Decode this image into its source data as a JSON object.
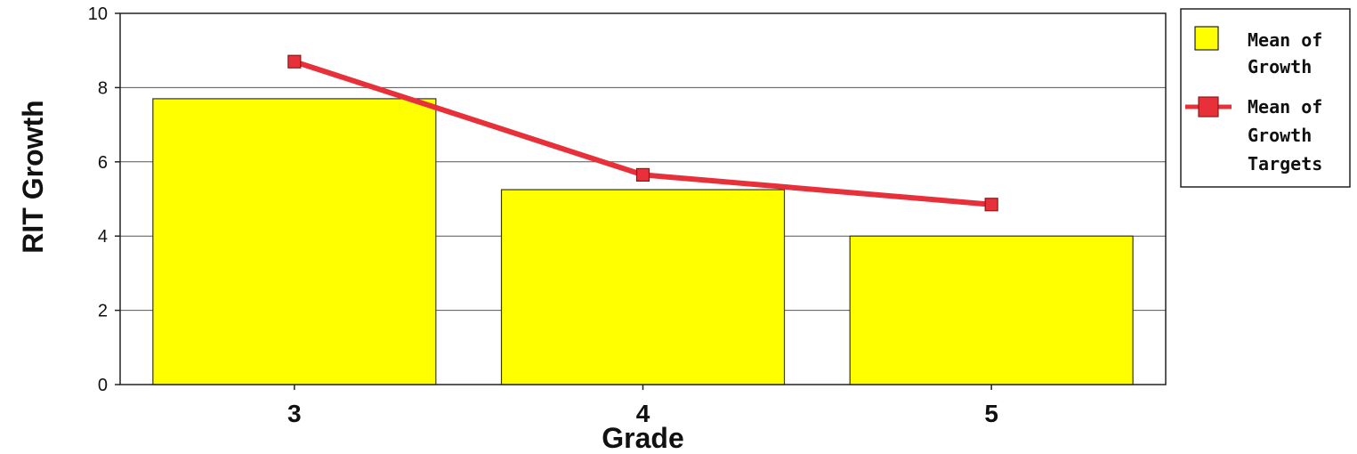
{
  "chart_data": {
    "type": "bar",
    "categories": [
      "3",
      "4",
      "5"
    ],
    "series": [
      {
        "name": "Mean of Growth",
        "kind": "bar",
        "values": [
          7.7,
          5.25,
          4.0
        ],
        "color": "#ffff00"
      },
      {
        "name": "Mean of Growth Targets",
        "kind": "line",
        "values": [
          8.7,
          5.65,
          4.85
        ],
        "color": "#e8303a"
      }
    ],
    "title": "",
    "xlabel": "Grade",
    "ylabel": "RIT Growth",
    "ylim": [
      0,
      10
    ],
    "yticks": [
      "0",
      "2",
      "4",
      "6",
      "8",
      "10"
    ],
    "grid": true,
    "legend_position": "right",
    "legend": {
      "bar_lines": [
        "Mean of",
        "Growth"
      ],
      "line_lines": [
        "Mean of",
        "Growth",
        "Targets"
      ]
    }
  }
}
